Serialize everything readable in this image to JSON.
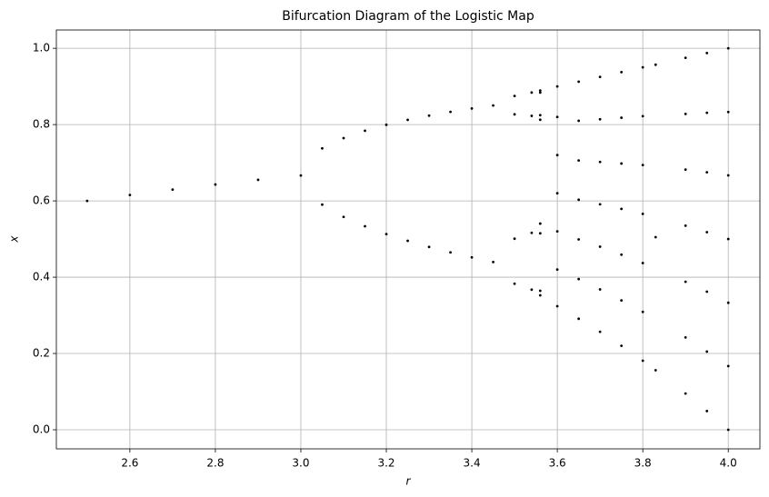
{
  "chart_data": {
    "type": "scatter",
    "title": "Bifurcation Diagram of the Logistic Map",
    "x_label": "r",
    "y_label": "x",
    "xlim": [
      2.428,
      4.074
    ],
    "ylim": [
      -0.05,
      1.048
    ],
    "xticks": [
      2.6,
      2.8,
      {
        "value": 3,
        "label": "3.0"
      },
      3.2,
      3.4,
      3.6,
      3.8,
      {
        "value": 4,
        "label": "4.0"
      }
    ],
    "yticks": [
      {
        "value": 0,
        "label": "0.0"
      },
      0.2,
      0.4,
      0.6,
      0.8,
      {
        "value": 1,
        "label": "1.0"
      }
    ],
    "grid": true,
    "series": [
      {
        "color": "#000000",
        "x": [
          2.5,
          2.6,
          2.7,
          2.8,
          2.9,
          3.0,
          3.05,
          3.05,
          3.1,
          3.1,
          3.15,
          3.15,
          3.2,
          3.2,
          3.25,
          3.25,
          3.3,
          3.3,
          3.35,
          3.35,
          3.4,
          3.4,
          3.45,
          3.45,
          3.5,
          3.5,
          3.5,
          3.5,
          3.54,
          3.54,
          3.54,
          3.54,
          3.56,
          3.56,
          3.56,
          3.56,
          3.56,
          3.56,
          3.56,
          3.56,
          3.6,
          3.6,
          3.6,
          3.6,
          3.6,
          3.6,
          3.6,
          3.65,
          3.65,
          3.65,
          3.65,
          3.65,
          3.65,
          3.65,
          3.7,
          3.7,
          3.7,
          3.7,
          3.7,
          3.7,
          3.7,
          3.75,
          3.75,
          3.75,
          3.75,
          3.75,
          3.75,
          3.75,
          3.8,
          3.8,
          3.8,
          3.8,
          3.8,
          3.8,
          3.8,
          3.83,
          3.83,
          3.83,
          3.9,
          3.9,
          3.9,
          3.9,
          3.9,
          3.9,
          3.9,
          3.95,
          3.95,
          3.95,
          3.95,
          3.95,
          3.95,
          3.95,
          4.0,
          4.0,
          4.0,
          4.0,
          4.0,
          4.0,
          4.0
        ],
        "values": [
          0.6,
          0.6154,
          0.6296,
          0.6429,
          0.6552,
          0.6667,
          0.7377,
          0.5902,
          0.7646,
          0.558,
          0.784,
          0.5335,
          0.7995,
          0.513,
          0.8124,
          0.4953,
          0.8236,
          0.4794,
          0.8334,
          0.4651,
          0.8422,
          0.452,
          0.85,
          0.4398,
          0.3828,
          0.8269,
          0.5009,
          0.875,
          0.3673,
          0.8228,
          0.5162,
          0.8841,
          0.3524,
          0.8127,
          0.5405,
          0.8839,
          0.3645,
          0.8246,
          0.5149,
          0.8893,
          0.324,
          0.42,
          0.52,
          0.62,
          0.72,
          0.82,
          0.9,
          0.291,
          0.395,
          0.499,
          0.603,
          0.706,
          0.81,
          0.9125,
          0.257,
          0.368,
          0.48,
          0.591,
          0.702,
          0.814,
          0.925,
          0.22,
          0.339,
          0.459,
          0.579,
          0.698,
          0.818,
          0.9375,
          0.181,
          0.309,
          0.437,
          0.566,
          0.694,
          0.822,
          0.95,
          0.156,
          0.505,
          0.957,
          0.095,
          0.242,
          0.388,
          0.535,
          0.682,
          0.828,
          0.975,
          0.049,
          0.205,
          0.362,
          0.518,
          0.675,
          0.831,
          0.9875,
          0,
          0.167,
          0.333,
          0.5,
          0.667,
          0.833,
          1.0
        ]
      }
    ]
  }
}
